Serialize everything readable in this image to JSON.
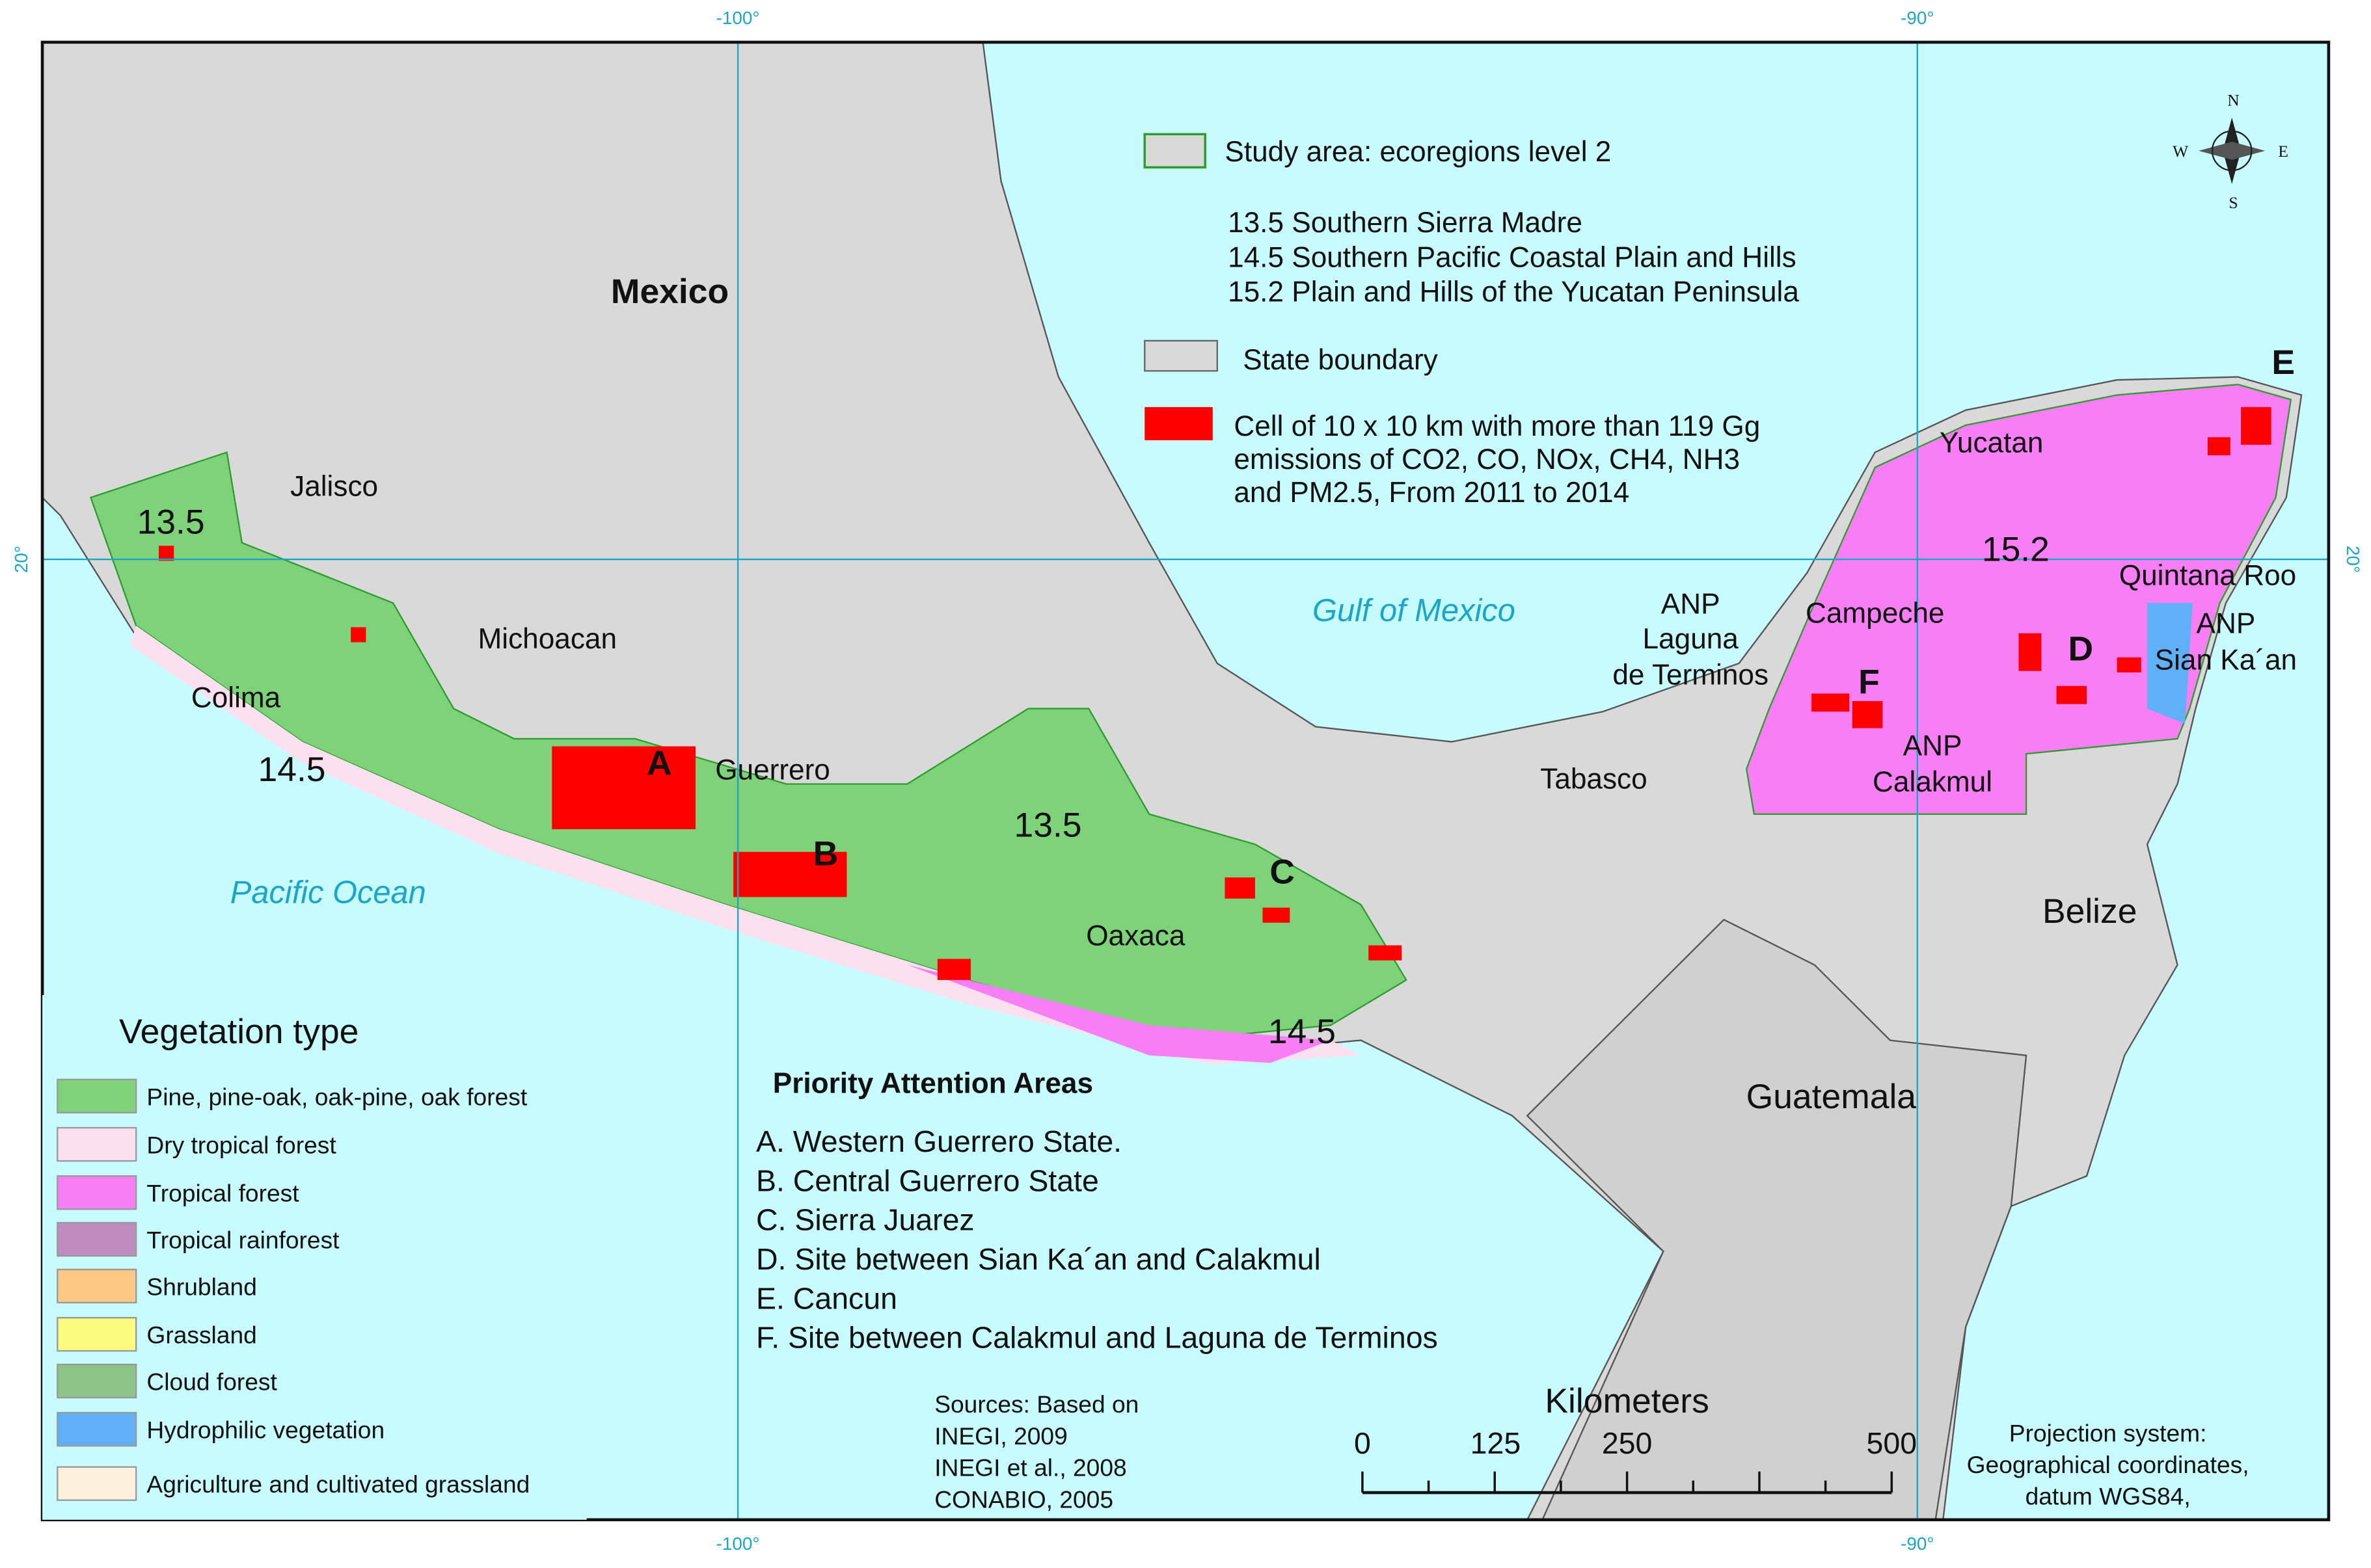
{
  "graticule": {
    "top": [
      "-100°",
      "-90°"
    ],
    "bottom": [
      "-100°",
      "-90°"
    ],
    "left": "20°",
    "right": "20°"
  },
  "map_labels": {
    "mexico": "Mexico",
    "jalisco": "Jalisco",
    "michoacan": "Michoacan",
    "colima": "Colima",
    "eco_14_5_west": "14.5",
    "eco_13_5_west": "13.5",
    "guerrero": "Guerrero",
    "a": "A",
    "b": "B",
    "eco_13_5_east": "13.5",
    "oaxaca": "Oaxaca",
    "c": "C",
    "eco_14_5_east": "14.5",
    "pacific": "Pacific Ocean",
    "gulf": "Gulf of Mexico",
    "anp_laguna": [
      "ANP",
      "Laguna",
      "de Terminos"
    ],
    "tabasco": "Tabasco",
    "campeche": "Campeche",
    "f": "F",
    "anp_calakmul": [
      "ANP",
      "Calakmul"
    ],
    "yucatan": "Yucatan",
    "eco_15_2": "15.2",
    "quintana_roo": "Quintana Roo",
    "d": "D",
    "anp_sian": [
      "ANP",
      "Sian Ka´an"
    ],
    "e": "E",
    "belize": "Belize",
    "guatemala": "Guatemala"
  },
  "compass": {
    "n": "N",
    "s": "S",
    "e": "E",
    "w": "W"
  },
  "legend": {
    "study_area": "Study area: ecoregions level 2",
    "ecoregions": [
      "13.5 Southern Sierra Madre",
      "14.5 Southern Pacific Coastal Plain and Hills",
      "15.2 Plain and Hills of the Yucatan Peninsula"
    ],
    "state_boundary": "State boundary",
    "cell": [
      "Cell of 10 x 10  km with more than 119 Gg",
      "emissions of CO2, CO, NOx, CH4, NH3",
      "and PM2.5,  From 2011 to 2014"
    ]
  },
  "vegetation": {
    "title": "Vegetation type",
    "items": [
      {
        "label": "Pine, pine-oak, oak-pine, oak forest",
        "color": "#7ed37a"
      },
      {
        "label": "Dry tropical forest",
        "color": "#fde0f0"
      },
      {
        "label": "Tropical forest",
        "color": "#f77ef5"
      },
      {
        "label": "Tropical rainforest",
        "color": "#c08cc0"
      },
      {
        "label": "Shrubland",
        "color": "#fdc785"
      },
      {
        "label": "Grassland",
        "color": "#fbfb80"
      },
      {
        "label": "Cloud forest",
        "color": "#8cc48a"
      },
      {
        "label": "Hydrophilic vegetation",
        "color": "#5fb0f7"
      },
      {
        "label": "Agriculture and cultivated grassland",
        "color": "#fdf1dc"
      }
    ]
  },
  "priority": {
    "title": "Priority Attention Areas",
    "items": [
      "A. Western Guerrero State.",
      "B. Central Guerrero State",
      "C. Sierra Juarez",
      "D. Site between Sian Ka´an and Calakmul",
      "E. Cancun",
      "F. Site between Calakmul and Laguna de Terminos"
    ]
  },
  "sources": [
    "Sources: Based on",
    "INEGI, 2009",
    "INEGI et al., 2008",
    "CONABIO, 2005"
  ],
  "scale": {
    "title": "Kilometers",
    "ticks": [
      "0",
      "125",
      "250",
      "500"
    ]
  },
  "projection": [
    "Projection system:",
    "Geographical coordinates,",
    "datum WGS84,"
  ]
}
